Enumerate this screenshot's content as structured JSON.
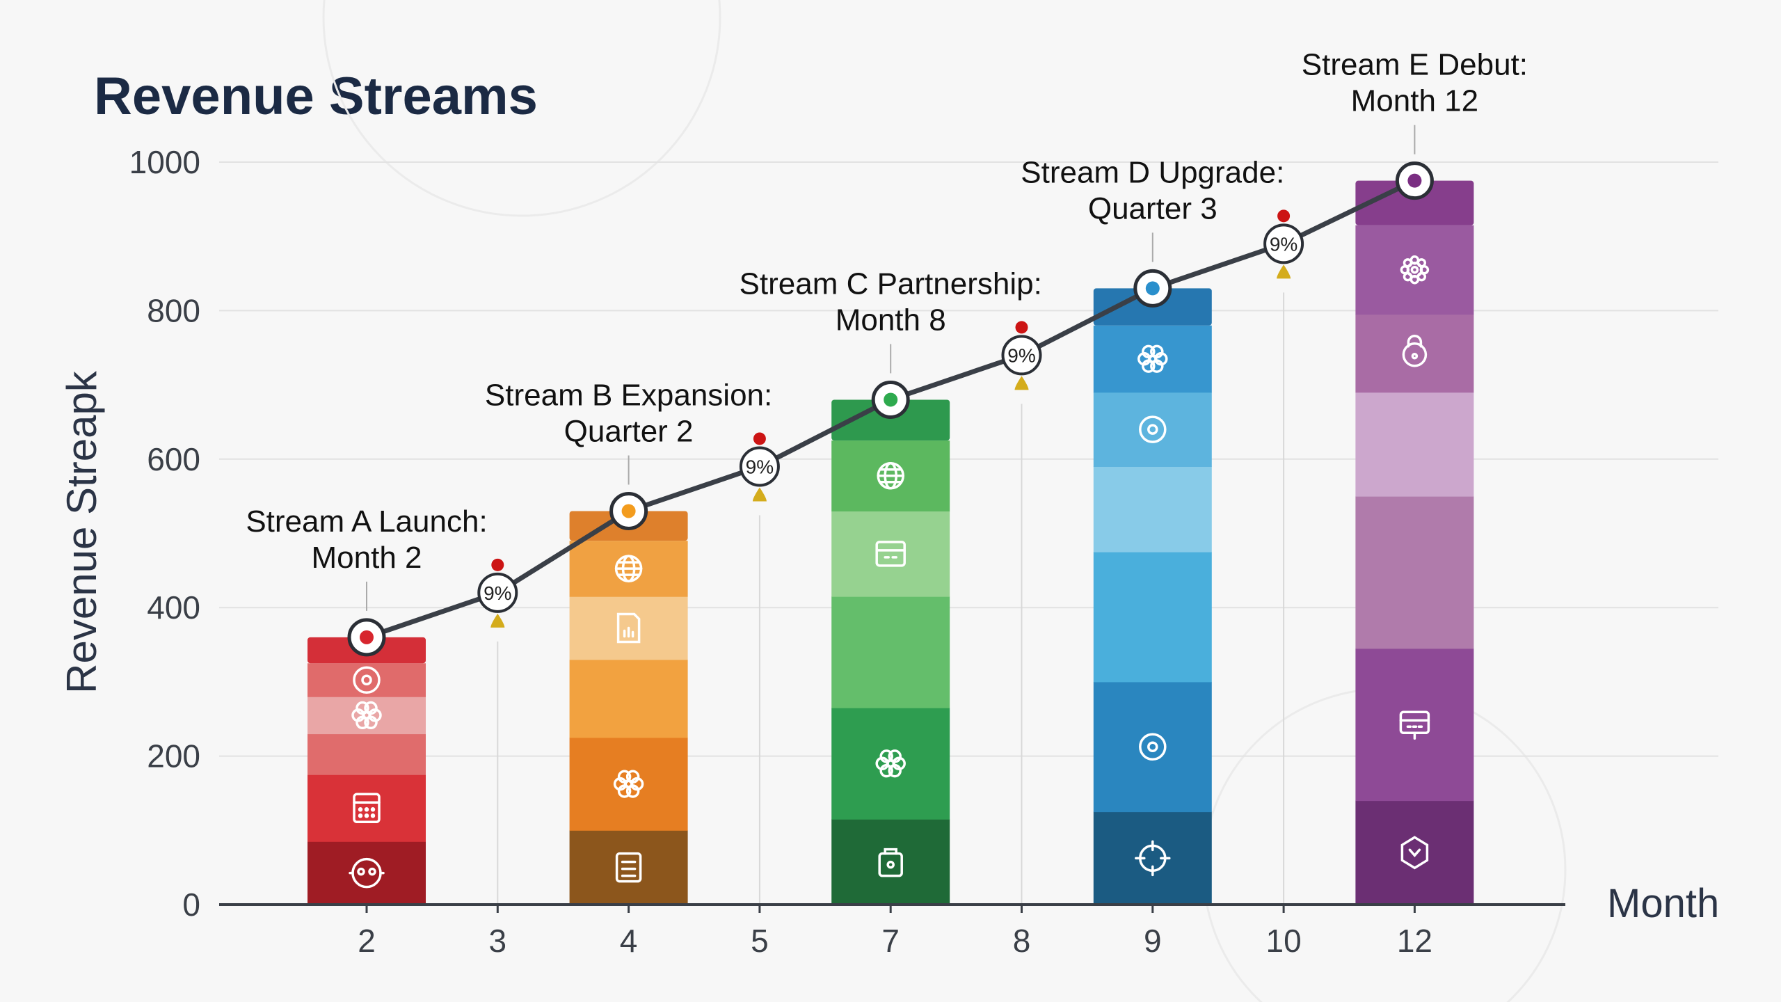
{
  "chart_data": {
    "type": "bar",
    "title": "Revenue Streams",
    "xlabel": "Month",
    "ylabel": "Revenue Streapk",
    "ylim": [
      0,
      1000
    ],
    "yticks": [
      0,
      200,
      400,
      600,
      800,
      1000
    ],
    "grid": true,
    "categories": [
      "2",
      "3",
      "4",
      "5",
      "7",
      "8",
      "9",
      "10",
      "12"
    ],
    "line": {
      "color": "#3a3f47",
      "values": [
        360,
        420,
        530,
        590,
        680,
        740,
        830,
        890,
        975
      ]
    },
    "bars": [
      {
        "category": "2",
        "total": 360,
        "point_color": "#d7262e",
        "segments": [
          {
            "value": 85,
            "color": "#9f1c24",
            "icon": "face-icon"
          },
          {
            "value": 90,
            "color": "#d93238",
            "icon": "calendar-icon"
          },
          {
            "value": 55,
            "color": "#e06c6c",
            "icon": ""
          },
          {
            "value": 50,
            "color": "#e9a6a6",
            "icon": "flower-icon"
          },
          {
            "value": 45,
            "color": "#e06b6b",
            "icon": "target-icon"
          },
          {
            "value": 35,
            "color": "#d42f38",
            "icon": ""
          }
        ]
      },
      {
        "category": "4",
        "total": 530,
        "point_color": "#f39c1e",
        "segments": [
          {
            "value": 100,
            "color": "#8c561c",
            "icon": "clipboard-icon"
          },
          {
            "value": 125,
            "color": "#e67e22",
            "icon": "flower-icon"
          },
          {
            "value": 105,
            "color": "#f2a240",
            "icon": ""
          },
          {
            "value": 85,
            "color": "#f5c98d",
            "icon": "file-icon"
          },
          {
            "value": 75,
            "color": "#f0a142",
            "icon": "globe-icon"
          },
          {
            "value": 40,
            "color": "#de802c",
            "icon": ""
          }
        ]
      },
      {
        "category": "7",
        "total": 680,
        "point_color": "#2eaa4e",
        "segments": [
          {
            "value": 115,
            "color": "#1f6a37",
            "icon": "bag-icon"
          },
          {
            "value": 150,
            "color": "#2e9d50",
            "icon": "flower-icon"
          },
          {
            "value": 150,
            "color": "#64be6b",
            "icon": ""
          },
          {
            "value": 115,
            "color": "#96d290",
            "icon": "card-icon"
          },
          {
            "value": 95,
            "color": "#5cb85f",
            "icon": "globe-icon"
          },
          {
            "value": 55,
            "color": "#2e994e",
            "icon": ""
          }
        ]
      },
      {
        "category": "9",
        "total": 830,
        "point_color": "#2a8fcc",
        "segments": [
          {
            "value": 125,
            "color": "#1b5b82",
            "icon": "crosshair-icon"
          },
          {
            "value": 175,
            "color": "#2a86bf",
            "icon": "target-icon"
          },
          {
            "value": 175,
            "color": "#4aafdc",
            "icon": ""
          },
          {
            "value": 115,
            "color": "#88cbe8",
            "icon": ""
          },
          {
            "value": 100,
            "color": "#5db4de",
            "icon": "target-icon"
          },
          {
            "value": 90,
            "color": "#3796cf",
            "icon": "flower-icon"
          },
          {
            "value": 50,
            "color": "#2677b0",
            "icon": ""
          }
        ]
      },
      {
        "category": "12",
        "total": 975,
        "point_color": "#7a2e82",
        "segments": [
          {
            "value": 140,
            "color": "#6b2f73",
            "icon": "shield-icon"
          },
          {
            "value": 205,
            "color": "#8e4a96",
            "icon": "chat-icon"
          },
          {
            "value": 205,
            "color": "#b07bab",
            "icon": ""
          },
          {
            "value": 140,
            "color": "#cca7cd",
            "icon": ""
          },
          {
            "value": 105,
            "color": "#a96ca5",
            "icon": "lock-icon"
          },
          {
            "value": 120,
            "color": "#9a5aa0",
            "icon": "gear-icon"
          },
          {
            "value": 60,
            "color": "#863e8c",
            "icon": ""
          }
        ]
      }
    ],
    "annotations": [
      {
        "category": "2",
        "lines": [
          "Stream A Launch:",
          "Month 2"
        ]
      },
      {
        "category": "4",
        "lines": [
          "Stream B Expansion:",
          "Quarter 2"
        ]
      },
      {
        "category": "7",
        "lines": [
          "Stream C Partnership:",
          "Month 8"
        ]
      },
      {
        "category": "9",
        "lines": [
          "Stream D Upgrade:",
          "Quarter 3"
        ]
      },
      {
        "category": "12",
        "lines": [
          "Stream E Debut:",
          "Month 12"
        ]
      }
    ],
    "growth_markers": [
      {
        "category": "3",
        "label": "9%"
      },
      {
        "category": "5",
        "label": "9%"
      },
      {
        "category": "8",
        "label": "9%"
      },
      {
        "category": "10",
        "label": "9%"
      }
    ],
    "colors": {
      "up_dot": "#cc1414",
      "drop": "#d4ac1c",
      "axis": "#3a3f47",
      "grid": "#e2e2e2"
    }
  }
}
